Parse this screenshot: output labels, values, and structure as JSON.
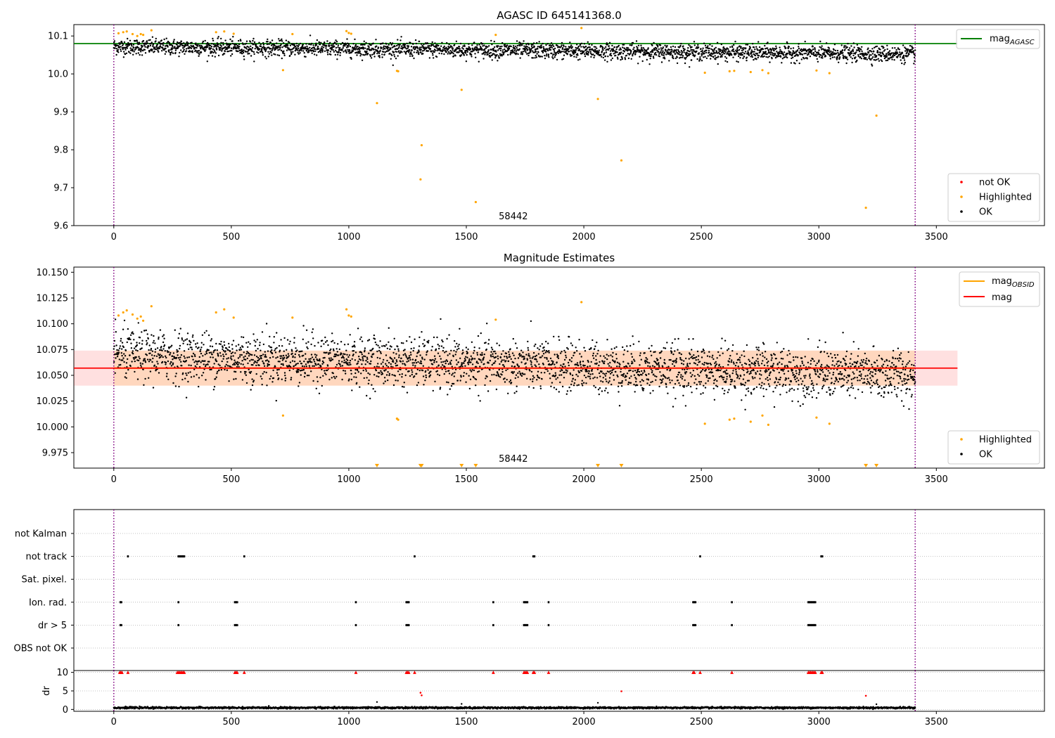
{
  "chart_data": [
    {
      "type": "scatter",
      "title": "AGASC ID 645141368.0",
      "xlim": [
        -170,
        3960
      ],
      "ylim": [
        9.6,
        10.13
      ],
      "xticks": [
        0,
        500,
        1000,
        1500,
        2000,
        2500,
        3000,
        3500
      ],
      "yticks": [
        9.6,
        9.7,
        9.8,
        9.9,
        10.0,
        10.1
      ],
      "ytick_labels": [
        "9.6",
        "9.7",
        "9.8",
        "9.9",
        "10.0",
        "10.1"
      ],
      "annotation": "58442",
      "annotation_x": 1700,
      "obs_boundaries": [
        0,
        3410
      ],
      "reference_line": {
        "name": "mag_AGASC",
        "label_main": "mag",
        "label_sub": "AGASC",
        "value": 10.08,
        "x_range": [
          -170,
          3590
        ],
        "color": "#008000"
      },
      "series": [
        {
          "name": "not OK",
          "color": "#ff0000",
          "points": []
        },
        {
          "name": "Highlighted",
          "color": "#ffa500",
          "points": [
            [
              20,
              10.107
            ],
            [
              40,
              10.11
            ],
            [
              55,
              10.112
            ],
            [
              80,
              10.105
            ],
            [
              100,
              10.1
            ],
            [
              115,
              10.105
            ],
            [
              125,
              10.103
            ],
            [
              160,
              10.115
            ],
            [
              435,
              10.11
            ],
            [
              470,
              10.112
            ],
            [
              510,
              10.106
            ],
            [
              720,
              10.01
            ],
            [
              760,
              10.105
            ],
            [
              990,
              10.113
            ],
            [
              1000,
              10.108
            ],
            [
              1010,
              10.106
            ],
            [
              1120,
              9.923
            ],
            [
              1205,
              10.008
            ],
            [
              1210,
              10.007
            ],
            [
              1310,
              9.812
            ],
            [
              1305,
              9.722
            ],
            [
              1480,
              9.958
            ],
            [
              1540,
              9.662
            ],
            [
              1625,
              10.103
            ],
            [
              1990,
              10.121
            ],
            [
              2060,
              9.934
            ],
            [
              2160,
              9.772
            ],
            [
              2515,
              10.003
            ],
            [
              2620,
              10.007
            ],
            [
              2640,
              10.008
            ],
            [
              2710,
              10.005
            ],
            [
              2760,
              10.01
            ],
            [
              2785,
              10.002
            ],
            [
              2990,
              10.009
            ],
            [
              3045,
              10.002
            ],
            [
              3200,
              9.647
            ],
            [
              3245,
              9.89
            ]
          ]
        },
        {
          "name": "OK",
          "color": "#000000",
          "points": []
        }
      ],
      "ok_band": {
        "n": 3000,
        "x_range": [
          0,
          3410
        ],
        "start_mean": 10.072,
        "end_mean": 10.052,
        "spread": 0.014
      },
      "legend": {
        "position": "lower-right",
        "entries": [
          "not OK",
          "Highlighted",
          "OK"
        ]
      },
      "legend2": {
        "position": "upper-right",
        "entries": [
          "mag_AGASC"
        ]
      }
    },
    {
      "type": "scatter",
      "title": "Magnitude Estimates",
      "xlim": [
        -170,
        3960
      ],
      "ylim": [
        9.96,
        10.155
      ],
      "xticks": [
        0,
        500,
        1000,
        1500,
        2000,
        2500,
        3000,
        3500
      ],
      "yticks": [
        9.975,
        10.0,
        10.025,
        10.05,
        10.075,
        10.1,
        10.125,
        10.15
      ],
      "ytick_labels": [
        "9.975",
        "10.000",
        "10.025",
        "10.050",
        "10.075",
        "10.100",
        "10.125",
        "10.150"
      ],
      "annotation": "58442",
      "annotation_x": 1700,
      "obs_boundaries": [
        0,
        3410
      ],
      "mag_obsid": {
        "name": "mag_OBSID",
        "label_main": "mag",
        "label_sub": "OBSID",
        "value": 10.057,
        "band": [
          10.04,
          10.074
        ],
        "x_range": [
          0,
          3410
        ],
        "color": "#ffa500"
      },
      "mag": {
        "name": "mag",
        "label_main": "mag",
        "value": 10.057,
        "band": [
          10.04,
          10.074
        ],
        "x_range": [
          -170,
          3590
        ],
        "color": "#ff0000"
      },
      "series": [
        {
          "name": "Highlighted",
          "color": "#ffa500",
          "points": [
            [
              20,
              10.108
            ],
            [
              40,
              10.111
            ],
            [
              55,
              10.113
            ],
            [
              80,
              10.109
            ],
            [
              100,
              10.105
            ],
            [
              115,
              10.107
            ],
            [
              125,
              10.103
            ],
            [
              160,
              10.117
            ],
            [
              435,
              10.111
            ],
            [
              470,
              10.114
            ],
            [
              510,
              10.106
            ],
            [
              720,
              10.011
            ],
            [
              760,
              10.106
            ],
            [
              990,
              10.114
            ],
            [
              1000,
              10.108
            ],
            [
              1010,
              10.107
            ],
            [
              1205,
              10.008
            ],
            [
              1210,
              10.007
            ],
            [
              1625,
              10.104
            ],
            [
              1990,
              10.121
            ],
            [
              2515,
              10.003
            ],
            [
              2620,
              10.007
            ],
            [
              2640,
              10.008
            ],
            [
              2710,
              10.005
            ],
            [
              2760,
              10.011
            ],
            [
              2785,
              10.002
            ],
            [
              2990,
              10.009
            ],
            [
              3045,
              10.003
            ]
          ]
        },
        {
          "name": "OK",
          "color": "#000000",
          "points": []
        }
      ],
      "clipped_markers_x": [
        1120,
        1305,
        1310,
        1480,
        1540,
        2060,
        2160,
        3200,
        3245
      ],
      "ok_band": {
        "n": 3000,
        "x_range": [
          0,
          3410
        ],
        "start_mean": 10.07,
        "end_mean": 10.05,
        "spread": 0.016
      },
      "legend": {
        "position": "lower-right",
        "entries": [
          "Highlighted",
          "OK"
        ]
      },
      "legend2": {
        "position": "upper-right",
        "entries": [
          "mag_OBSID",
          "mag"
        ]
      }
    },
    {
      "type": "scatter",
      "title": "",
      "xlim": [
        -170,
        3960
      ],
      "obs_boundaries": [
        0,
        3410
      ],
      "flag_rows": [
        "not Kalman",
        "not track",
        "Sat. pixel.",
        "Ion. rad.",
        "dr > 5",
        "OBS not OK"
      ],
      "flags": {
        "not Kalman": [],
        "not track": [
          60,
          275,
          280,
          285,
          290,
          295,
          300,
          555,
          1280,
          1785,
          1790,
          2495,
          3010,
          3015
        ],
        "Sat. pixel.": [],
        "Ion. rad.": [
          28,
          32,
          275,
          515,
          520,
          525,
          1030,
          1245,
          1250,
          1255,
          1615,
          1745,
          1750,
          1755,
          1760,
          1850,
          2465,
          2470,
          2475,
          2630,
          2955,
          2960,
          2965,
          2970,
          2975,
          2980,
          2985
        ],
        "dr > 5": [
          28,
          32,
          275,
          515,
          520,
          525,
          1030,
          1245,
          1250,
          1255,
          1615,
          1745,
          1750,
          1755,
          1760,
          1850,
          2465,
          2470,
          2475,
          2630,
          2955,
          2960,
          2965,
          2970,
          2975,
          2980,
          2985
        ],
        "OBS not OK": []
      }
    },
    {
      "type": "scatter",
      "title": "",
      "ylabel": "dr",
      "xlim": [
        -170,
        3960
      ],
      "ylim": [
        -0.5,
        10.5
      ],
      "yticks": [
        0,
        5,
        10
      ],
      "ytick_labels": [
        "0",
        "5",
        "10"
      ],
      "obs_boundaries": [
        0,
        3410
      ],
      "red_at_10_x": [
        25,
        30,
        35,
        60,
        270,
        275,
        280,
        285,
        290,
        295,
        300,
        515,
        520,
        525,
        555,
        1030,
        1245,
        1250,
        1255,
        1280,
        1615,
        1745,
        1750,
        1755,
        1760,
        1785,
        1790,
        1850,
        2465,
        2470,
        2495,
        2630,
        2955,
        2960,
        2965,
        2970,
        2975,
        2980,
        2985,
        3010,
        3015
      ],
      "red_points": [
        [
          1305,
          4.5
        ],
        [
          1310,
          3.8
        ],
        [
          2160,
          4.9
        ],
        [
          3200,
          3.7
        ]
      ],
      "black_outliers": [
        [
          1120,
          2.0
        ],
        [
          1480,
          1.5
        ],
        [
          2060,
          1.8
        ],
        [
          3245,
          1.4
        ]
      ],
      "ok_band": {
        "n": 3000,
        "x_range": [
          0,
          3410
        ],
        "mean": 0.45,
        "spread": 0.2
      }
    }
  ]
}
